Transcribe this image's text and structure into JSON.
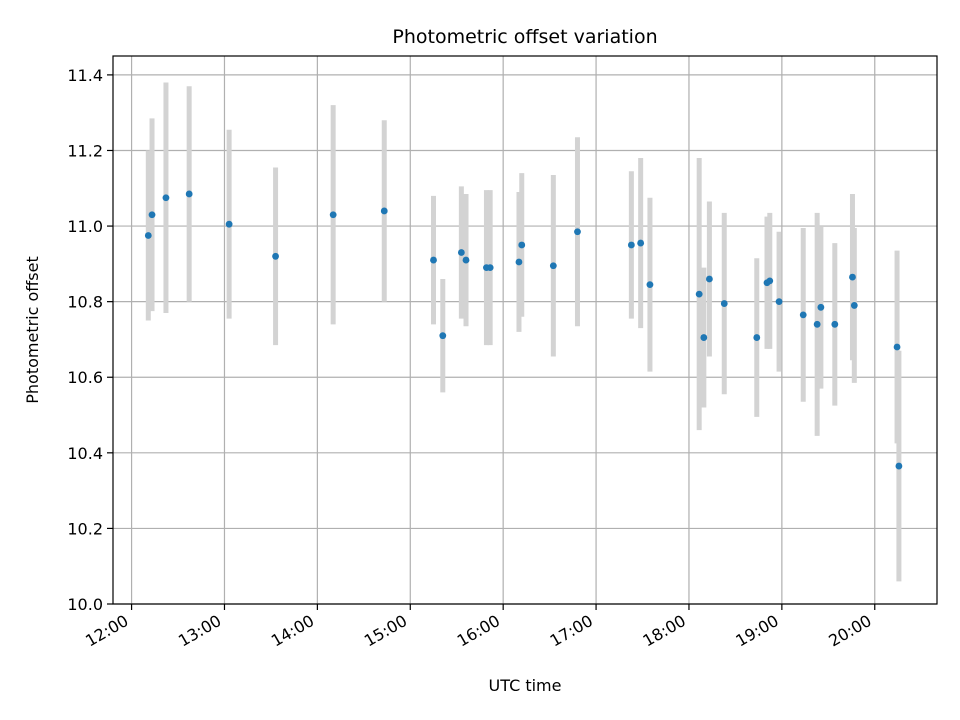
{
  "chart_data": {
    "type": "scatter",
    "title": "Photometric offset variation",
    "xlabel": "UTC time",
    "ylabel": "Photometric offset",
    "x_unit": "hours UTC",
    "xlim": [
      11.8,
      20.67
    ],
    "ylim": [
      10.0,
      11.45
    ],
    "xticks": [
      12,
      13,
      14,
      15,
      16,
      17,
      18,
      19,
      20
    ],
    "xtick_labels": [
      "12:00",
      "13:00",
      "14:00",
      "15:00",
      "16:00",
      "17:00",
      "18:00",
      "19:00",
      "20:00"
    ],
    "yticks": [
      10.0,
      10.2,
      10.4,
      10.6,
      10.8,
      11.0,
      11.2,
      11.4
    ],
    "ytick_labels": [
      "10.0",
      "10.2",
      "10.4",
      "10.6",
      "10.8",
      "11.0",
      "11.2",
      "11.4"
    ],
    "grid": true,
    "colors": {
      "point": "#1f77b4",
      "errorbar": "#d3d3d3",
      "grid": "#b0b0b0"
    },
    "points": [
      {
        "x": 12.18,
        "y": 10.975,
        "err": 0.225
      },
      {
        "x": 12.22,
        "y": 11.03,
        "err": 0.255
      },
      {
        "x": 12.37,
        "y": 11.075,
        "err": 0.305
      },
      {
        "x": 12.62,
        "y": 11.085,
        "err": 0.285
      },
      {
        "x": 13.05,
        "y": 11.005,
        "err": 0.25
      },
      {
        "x": 13.55,
        "y": 10.92,
        "err": 0.235
      },
      {
        "x": 14.17,
        "y": 11.03,
        "err": 0.29
      },
      {
        "x": 14.72,
        "y": 11.04,
        "err": 0.24
      },
      {
        "x": 15.25,
        "y": 10.91,
        "err": 0.17
      },
      {
        "x": 15.35,
        "y": 10.71,
        "err": 0.15
      },
      {
        "x": 15.55,
        "y": 10.93,
        "err": 0.175
      },
      {
        "x": 15.6,
        "y": 10.91,
        "err": 0.175
      },
      {
        "x": 15.82,
        "y": 10.89,
        "err": 0.205
      },
      {
        "x": 15.86,
        "y": 10.89,
        "err": 0.205
      },
      {
        "x": 16.17,
        "y": 10.905,
        "err": 0.185
      },
      {
        "x": 16.2,
        "y": 10.95,
        "err": 0.19
      },
      {
        "x": 16.54,
        "y": 10.895,
        "err": 0.24
      },
      {
        "x": 16.8,
        "y": 10.985,
        "err": 0.25
      },
      {
        "x": 17.38,
        "y": 10.95,
        "err": 0.195
      },
      {
        "x": 17.48,
        "y": 10.955,
        "err": 0.225
      },
      {
        "x": 17.58,
        "y": 10.845,
        "err": 0.23
      },
      {
        "x": 18.11,
        "y": 10.82,
        "err": 0.36
      },
      {
        "x": 18.16,
        "y": 10.705,
        "err": 0.185
      },
      {
        "x": 18.22,
        "y": 10.86,
        "err": 0.205
      },
      {
        "x": 18.38,
        "y": 10.795,
        "err": 0.24
      },
      {
        "x": 18.73,
        "y": 10.705,
        "err": 0.21
      },
      {
        "x": 18.84,
        "y": 10.85,
        "err": 0.175
      },
      {
        "x": 18.87,
        "y": 10.855,
        "err": 0.18
      },
      {
        "x": 18.97,
        "y": 10.8,
        "err": 0.185
      },
      {
        "x": 19.23,
        "y": 10.765,
        "err": 0.23
      },
      {
        "x": 19.38,
        "y": 10.74,
        "err": 0.295
      },
      {
        "x": 19.42,
        "y": 10.785,
        "err": 0.215
      },
      {
        "x": 19.57,
        "y": 10.74,
        "err": 0.215
      },
      {
        "x": 19.76,
        "y": 10.865,
        "err": 0.22
      },
      {
        "x": 19.78,
        "y": 10.79,
        "err": 0.205
      },
      {
        "x": 20.24,
        "y": 10.68,
        "err": 0.255
      },
      {
        "x": 20.26,
        "y": 10.365,
        "err": 0.305
      }
    ]
  }
}
